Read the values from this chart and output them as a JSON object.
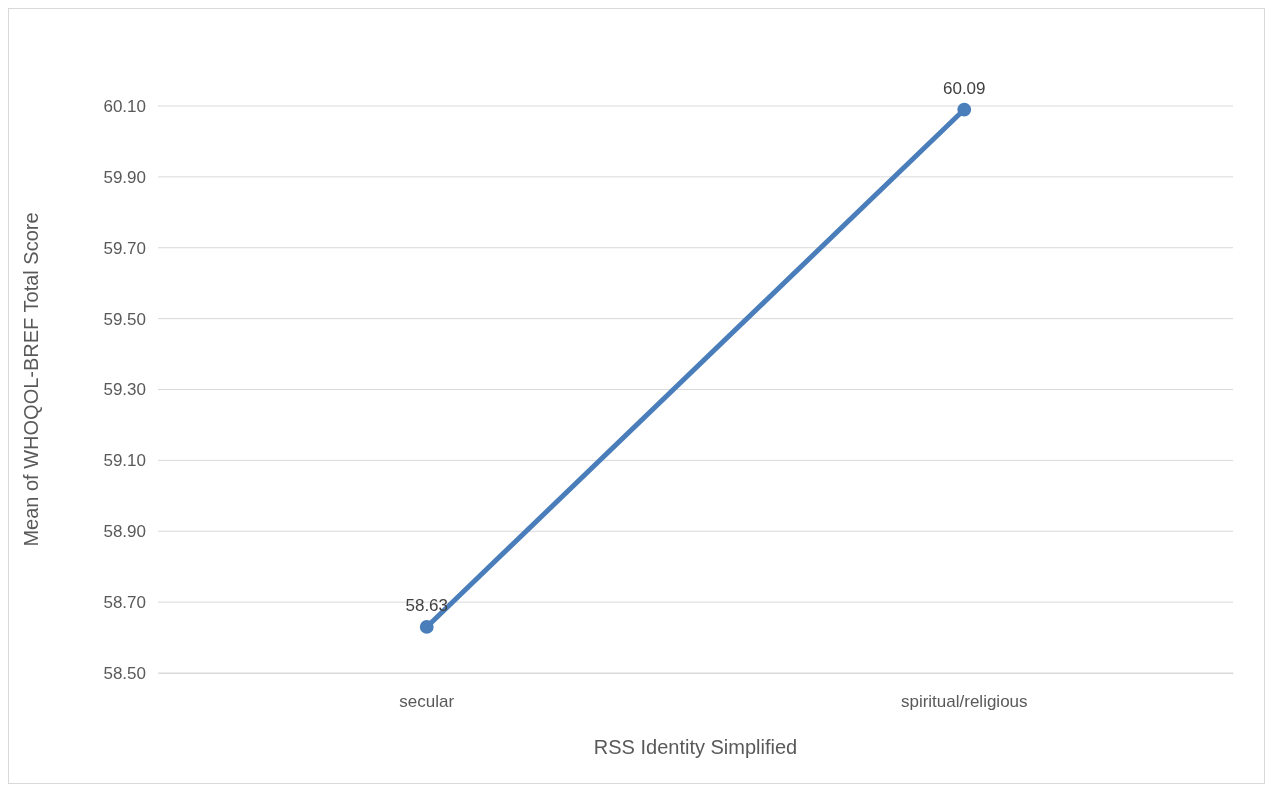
{
  "chart_data": {
    "type": "line",
    "xlabel": "RSS Identity Simplified",
    "ylabel": "Mean of WHOQOL-BREF Total Score",
    "categories": [
      "secular",
      "spiritual/religious"
    ],
    "series": [
      {
        "color": "#4a7ebb",
        "values": [
          58.63,
          60.09
        ]
      }
    ],
    "ylim": [
      58.5,
      60.1
    ],
    "yticks": [
      {
        "value": 58.5,
        "label": "58.50"
      },
      {
        "value": 58.7,
        "label": "58.70"
      },
      {
        "value": 58.9,
        "label": "58.90"
      },
      {
        "value": 59.1,
        "label": "59.10"
      },
      {
        "value": 59.3,
        "label": "59.30"
      },
      {
        "value": 59.5,
        "label": "59.50"
      },
      {
        "value": 59.7,
        "label": "59.70"
      },
      {
        "value": 59.9,
        "label": "59.90"
      },
      {
        "value": 60.1,
        "label": "60.10"
      }
    ],
    "grid": "y",
    "marker": "circle",
    "line_style": "solid",
    "data_labels": true
  }
}
